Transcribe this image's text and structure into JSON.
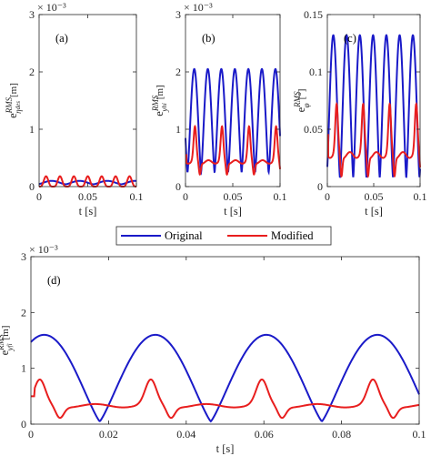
{
  "chart_data": [
    {
      "type": "line",
      "panel_label": "(a)",
      "ylabel_base": "e",
      "ylabel_sup": "RMS",
      "ylabel_sub": "η",
      "ylabel_subsub": "des",
      "ylabel_unit": "[m]",
      "xlabel": "t [s]",
      "y_exponent": "× 10⁻³",
      "xlim": [
        0,
        0.1
      ],
      "ylim": [
        0,
        3
      ],
      "xticks": [
        "0",
        "0.05",
        "0.1"
      ],
      "yticks": [
        "0",
        "1",
        "2",
        "3"
      ],
      "grid": false,
      "series": [
        {
          "name": "Original",
          "color": "#1a1ac8",
          "kind": "periodic",
          "period": 0.0286,
          "min": 0.04,
          "max": 0.1,
          "peak_pos": 0.45,
          "sharp": 1.5
        },
        {
          "name": "Modified",
          "color": "#e81e1e",
          "kind": "periodic",
          "period": 0.0143,
          "min": 0.0,
          "max": 0.18,
          "peak_pos": 0.5,
          "sharp": 4
        }
      ]
    },
    {
      "type": "line",
      "panel_label": "(b)",
      "ylabel_base": "e",
      "ylabel_sup": "RMS",
      "ylabel_sub": "y",
      "ylabel_subsub": "hi",
      "ylabel_unit": "[m]",
      "xlabel": "t [s]",
      "y_exponent": "× 10⁻³",
      "xlim": [
        0,
        0.1
      ],
      "ylim": [
        0,
        3
      ],
      "xticks": [
        "0",
        "0.05",
        "0.1"
      ],
      "yticks": [
        "0",
        "1",
        "2",
        "3"
      ],
      "grid": false,
      "series": [
        {
          "name": "Original",
          "color": "#1a1ac8",
          "kind": "periodic",
          "period": 0.0143,
          "min": 0.25,
          "max": 2.05,
          "peak_pos": 0.65,
          "sharp": 1.4
        },
        {
          "name": "Modified",
          "color": "#e81e1e",
          "kind": "modified",
          "period": 0.0286,
          "min": 0.2,
          "base": 0.4,
          "max": 1.05,
          "peak_pos": 0.35,
          "start": 0.55
        }
      ]
    },
    {
      "type": "line",
      "panel_label": "(c)",
      "ylabel_base": "e",
      "ylabel_sup": "RMS",
      "ylabel_sub": "φ",
      "ylabel_subsub": "",
      "ylabel_unit": "[°]",
      "xlabel": "t [s]",
      "y_exponent": "",
      "xlim": [
        0,
        0.1
      ],
      "ylim": [
        0,
        0.15
      ],
      "xticks": [
        "0",
        "0.05",
        "0.1"
      ],
      "yticks": [
        "0",
        "0.05",
        "0.1",
        "0.15"
      ],
      "grid": false,
      "series": [
        {
          "name": "Original",
          "color": "#1a1ac8",
          "kind": "periodic",
          "period": 0.0143,
          "min": 0.008,
          "max": 0.132,
          "peak_pos": 0.45,
          "sharp": 1.4
        },
        {
          "name": "Modified",
          "color": "#e81e1e",
          "kind": "modified",
          "period": 0.0286,
          "min": 0.008,
          "base": 0.025,
          "max": 0.072,
          "peak_pos": 0.35,
          "start": 0.045
        }
      ]
    },
    {
      "type": "line",
      "panel_label": "(d)",
      "ylabel_base": "e",
      "ylabel_sup": "RMS",
      "ylabel_sub": "y",
      "ylabel_subsub": "fi",
      "ylabel_unit": "[m]",
      "xlabel": "t [s]",
      "y_exponent": "× 10⁻³",
      "xlim": [
        0,
        0.1
      ],
      "ylim": [
        0,
        3
      ],
      "xticks": [
        "0",
        "0.02",
        "0.04",
        "0.06",
        "0.08",
        "0.1"
      ],
      "yticks": [
        "0",
        "1",
        "2",
        "3"
      ],
      "grid": false,
      "series": [
        {
          "name": "Original",
          "color": "#1a1ac8",
          "kind": "periodic",
          "period": 0.0286,
          "min": 0.05,
          "max": 1.6,
          "peak_pos": 0.12,
          "sharp": 1.2
        },
        {
          "name": "Modified",
          "color": "#e81e1e",
          "kind": "modified",
          "period": 0.0286,
          "min": 0.1,
          "base": 0.3,
          "max": 0.8,
          "peak_pos": 0.08,
          "start": 0.5
        }
      ]
    }
  ],
  "legend": {
    "entries": [
      {
        "label": "Original",
        "color": "#1a1ac8"
      },
      {
        "label": "Modified",
        "color": "#e81e1e"
      }
    ],
    "placement": "top-center"
  }
}
